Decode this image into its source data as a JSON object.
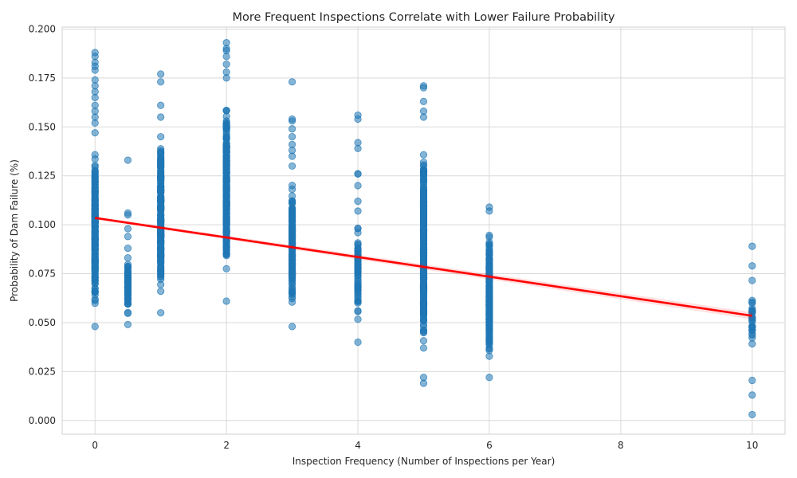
{
  "chart_data": {
    "type": "scatter",
    "title": "More Frequent Inspections Correlate with Lower Failure Probability",
    "xlabel": "Inspection Frequency (Number of Inspections per Year)",
    "ylabel": "Probability of Dam Failure (%)",
    "xlim": [
      -0.5,
      10.5
    ],
    "ylim": [
      -0.007,
      0.201
    ],
    "xticks": [
      0,
      2,
      4,
      6,
      8,
      10
    ],
    "xtick_labels": [
      "0",
      "2",
      "4",
      "6",
      "8",
      "10"
    ],
    "yticks": [
      0.0,
      0.025,
      0.05,
      0.075,
      0.1,
      0.125,
      0.15,
      0.175,
      0.2
    ],
    "ytick_labels": [
      "0.000",
      "0.025",
      "0.050",
      "0.075",
      "0.100",
      "0.125",
      "0.150",
      "0.175",
      "0.200"
    ],
    "grid": true,
    "point_color": "#1f77b4",
    "point_alpha": 0.55,
    "groups": [
      {
        "x": 0,
        "y_min": 0.048,
        "y_max": 0.147,
        "dense_count": 220,
        "outliers": [
          0.152,
          0.155,
          0.158,
          0.161,
          0.165,
          0.168,
          0.171,
          0.174,
          0.179,
          0.181,
          0.183,
          0.186,
          0.188
        ]
      },
      {
        "x": 0.5,
        "y_min": 0.049,
        "y_max": 0.088,
        "dense_count": 70,
        "outliers": [
          0.094,
          0.098,
          0.105,
          0.106,
          0.133
        ]
      },
      {
        "x": 1,
        "y_min": 0.055,
        "y_max": 0.155,
        "dense_count": 200,
        "outliers": [
          0.161,
          0.173,
          0.177
        ]
      },
      {
        "x": 2,
        "y_min": 0.061,
        "y_max": 0.175,
        "dense_count": 230,
        "outliers": [
          0.178,
          0.182,
          0.186,
          0.189,
          0.19,
          0.193
        ]
      },
      {
        "x": 3,
        "y_min": 0.048,
        "y_max": 0.13,
        "dense_count": 150,
        "outliers": [
          0.135,
          0.138,
          0.141,
          0.145,
          0.149,
          0.153,
          0.154,
          0.173
        ]
      },
      {
        "x": 4,
        "y_min": 0.04,
        "y_max": 0.107,
        "dense_count": 60,
        "outliers": [
          0.112,
          0.12,
          0.126,
          0.126,
          0.139,
          0.142,
          0.154,
          0.156
        ]
      },
      {
        "x": 5,
        "y_min": 0.022,
        "y_max": 0.155,
        "dense_count": 300,
        "outliers": [
          0.019,
          0.158,
          0.163,
          0.17,
          0.171
        ]
      },
      {
        "x": 6,
        "y_min": 0.022,
        "y_max": 0.107,
        "dense_count": 200,
        "outliers": [
          0.109
        ]
      },
      {
        "x": 10,
        "y_min": 0.013,
        "y_max": 0.079,
        "dense_count": 30,
        "outliers": [
          0.003,
          0.089
        ]
      }
    ],
    "regression": {
      "x": [
        0,
        10
      ],
      "y": [
        0.1035,
        0.0535
      ],
      "color": "#ff0000"
    }
  }
}
